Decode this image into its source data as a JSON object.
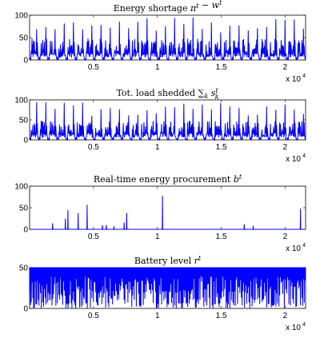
{
  "chart_data": [
    {
      "type": "line",
      "title": "Energy shortage π^t − w^t",
      "x_multiplier": "x 10",
      "x_multiplier_exp": "4",
      "xlim": [
        0,
        21600
      ],
      "ylim": [
        0,
        100
      ],
      "xticks": [
        5000,
        10000,
        15000,
        20000
      ],
      "xtick_labels": [
        "0.5",
        "1",
        "1.5",
        "2"
      ],
      "yticks": [
        0,
        50,
        100
      ],
      "ytick_labels": [
        "0",
        "50",
        "100"
      ],
      "pattern": "dense periodic spikes",
      "cycle_count": 30,
      "peak_min": 60,
      "peak_max": 95
    },
    {
      "type": "line",
      "title": "Tot. load shedded ∑_k s_k^t",
      "x_multiplier": "x 10",
      "x_multiplier_exp": "4",
      "xlim": [
        0,
        21600
      ],
      "ylim": [
        0,
        100
      ],
      "xticks": [
        5000,
        10000,
        15000,
        20000
      ],
      "xtick_labels": [
        "0.5",
        "1",
        "1.5",
        "2"
      ],
      "yticks": [
        0,
        50,
        100
      ],
      "ytick_labels": [
        "0",
        "50",
        "100"
      ],
      "pattern": "dense periodic spikes",
      "cycle_count": 30,
      "peak_min": 60,
      "peak_max": 95
    },
    {
      "type": "line",
      "title": "Real-time energy procurement b^t",
      "x_multiplier": "x 10",
      "x_multiplier_exp": "4",
      "xlim": [
        0,
        21600
      ],
      "ylim": [
        0,
        100
      ],
      "xticks": [
        5000,
        10000,
        15000,
        20000
      ],
      "xtick_labels": [
        "0.5",
        "1",
        "1.5",
        "2"
      ],
      "yticks": [
        0,
        50,
        100
      ],
      "ytick_labels": [
        "0",
        "50",
        "100"
      ],
      "pattern": "sparse spikes",
      "spikes": [
        {
          "x": 1800,
          "y": 14
        },
        {
          "x": 2800,
          "y": 25
        },
        {
          "x": 3000,
          "y": 45
        },
        {
          "x": 3800,
          "y": 38
        },
        {
          "x": 4500,
          "y": 57
        },
        {
          "x": 5700,
          "y": 10
        },
        {
          "x": 6000,
          "y": 10
        },
        {
          "x": 6600,
          "y": 7
        },
        {
          "x": 7400,
          "y": 16
        },
        {
          "x": 7600,
          "y": 38
        },
        {
          "x": 10400,
          "y": 78
        },
        {
          "x": 16800,
          "y": 12
        },
        {
          "x": 17500,
          "y": 8
        },
        {
          "x": 21200,
          "y": 48
        },
        {
          "x": 22000,
          "y": 18
        }
      ]
    },
    {
      "type": "line",
      "title": "Battery level r^t",
      "x_multiplier": "x 10",
      "x_multiplier_exp": "4",
      "xlim": [
        0,
        21600
      ],
      "ylim": [
        0,
        50
      ],
      "xticks": [
        5000,
        10000,
        15000,
        20000
      ],
      "xtick_labels": [
        "0.5",
        "1",
        "1.5",
        "2"
      ],
      "yticks": [
        0,
        50
      ],
      "ytick_labels": [
        "0",
        "50"
      ],
      "pattern": "high plateau with dense drops",
      "cycle_count": 30,
      "level_max": 50
    }
  ]
}
